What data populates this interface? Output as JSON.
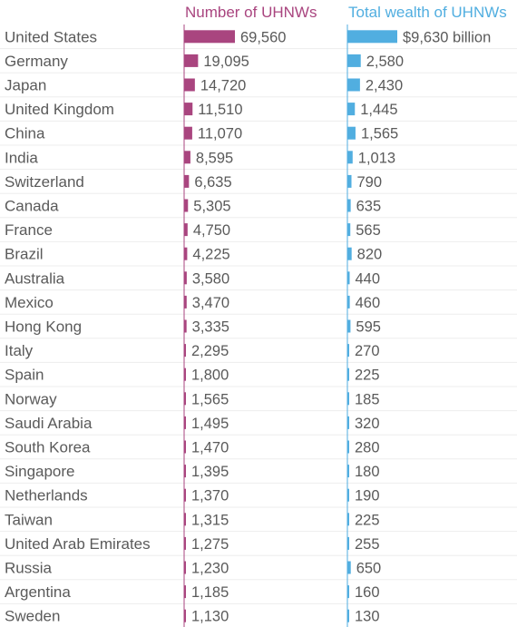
{
  "chart_data": [
    {
      "type": "bar",
      "orientation": "horizontal",
      "title": "Number of UHNWs",
      "color": "#a9457f",
      "categories": [
        "United States",
        "Germany",
        "Japan",
        "United Kingdom",
        "China",
        "India",
        "Switzerland",
        "Canada",
        "France",
        "Brazil",
        "Australia",
        "Mexico",
        "Hong Kong",
        "Italy",
        "Spain",
        "Norway",
        "Saudi Arabia",
        "South Korea",
        "Singapore",
        "Netherlands",
        "Taiwan",
        "United Arab Emirates",
        "Russia",
        "Argentina",
        "Sweden"
      ],
      "values": [
        69560,
        19095,
        14720,
        11510,
        11070,
        8595,
        6635,
        5305,
        4750,
        4225,
        3580,
        3470,
        3335,
        2295,
        1800,
        1565,
        1495,
        1470,
        1395,
        1370,
        1315,
        1275,
        1230,
        1185,
        1130
      ],
      "labels": [
        "69,560",
        "19,095",
        "14,720",
        "11,510",
        "11,070",
        "8,595",
        "6,635",
        "5,305",
        "4,750",
        "4,225",
        "3,580",
        "3,470",
        "3,335",
        "2,295",
        "1,800",
        "1,565",
        "1,495",
        "1,470",
        "1,395",
        "1,370",
        "1,315",
        "1,275",
        "1,230",
        "1,185",
        "1,130"
      ]
    },
    {
      "type": "bar",
      "orientation": "horizontal",
      "title": "Total wealth of UHNWs",
      "color": "#51aee0",
      "categories": [
        "United States",
        "Germany",
        "Japan",
        "United Kingdom",
        "China",
        "India",
        "Switzerland",
        "Canada",
        "France",
        "Brazil",
        "Australia",
        "Mexico",
        "Hong Kong",
        "Italy",
        "Spain",
        "Norway",
        "Saudi Arabia",
        "South Korea",
        "Singapore",
        "Netherlands",
        "Taiwan",
        "United Arab Emirates",
        "Russia",
        "Argentina",
        "Sweden"
      ],
      "values": [
        9630,
        2580,
        2430,
        1445,
        1565,
        1013,
        790,
        635,
        565,
        820,
        440,
        460,
        595,
        270,
        225,
        185,
        320,
        280,
        180,
        190,
        225,
        255,
        650,
        160,
        130
      ],
      "labels": [
        "$9,630 billion",
        "2,580",
        "2,430",
        "1,445",
        "1,565",
        "1,013",
        "790",
        "635",
        "565",
        "820",
        "440",
        "460",
        "595",
        "270",
        "225",
        "185",
        "320",
        "280",
        "180",
        "190",
        "225",
        "255",
        "650",
        "160",
        "130"
      ]
    }
  ]
}
